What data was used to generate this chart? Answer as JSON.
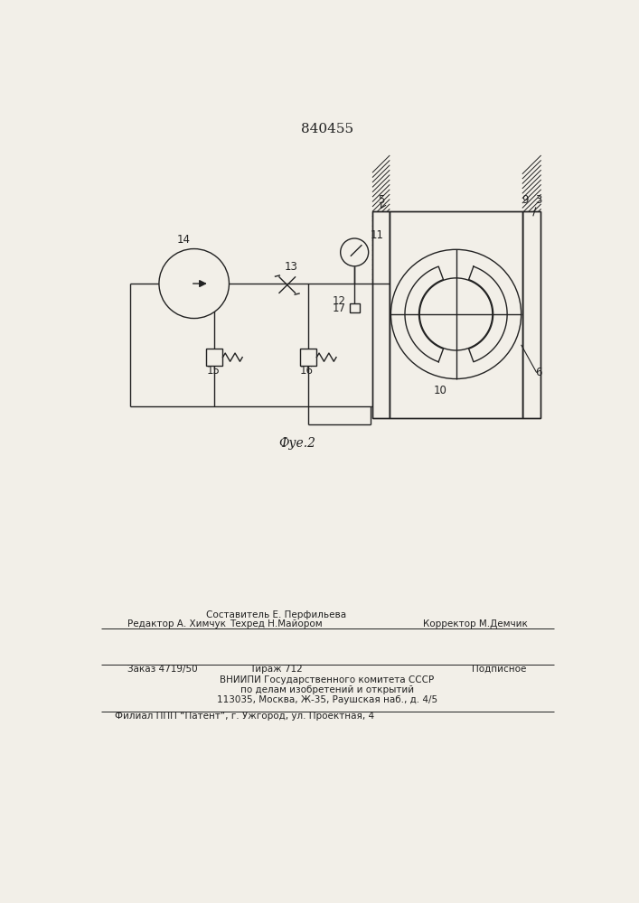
{
  "title": "840455",
  "fig_label": "Фуе.2",
  "bg_color": "#f2efe8",
  "line_color": "#222222",
  "footer_line1_left": "Редактор А. Химчук",
  "footer_line1_center_top": "Составитель Е. Перфильева",
  "footer_line1_center_bot": "Техред Н.Майором",
  "footer_line1_right": "Корректор М.Демчик",
  "footer_line2_left": "Заказ 4719/50",
  "footer_line2_center": "Тираж 712",
  "footer_line2_right": "Подписное",
  "footer_line3": "ВНИИПИ Государственного комитета СССР",
  "footer_line4": "по делам изобретений и открытий",
  "footer_line5": "113035, Москва, Ж-35, Раушская наб., д. 4/5",
  "footer_line6": "Филиал ППП “Патент”, г. Ужгород, ул. Проектная, 4"
}
